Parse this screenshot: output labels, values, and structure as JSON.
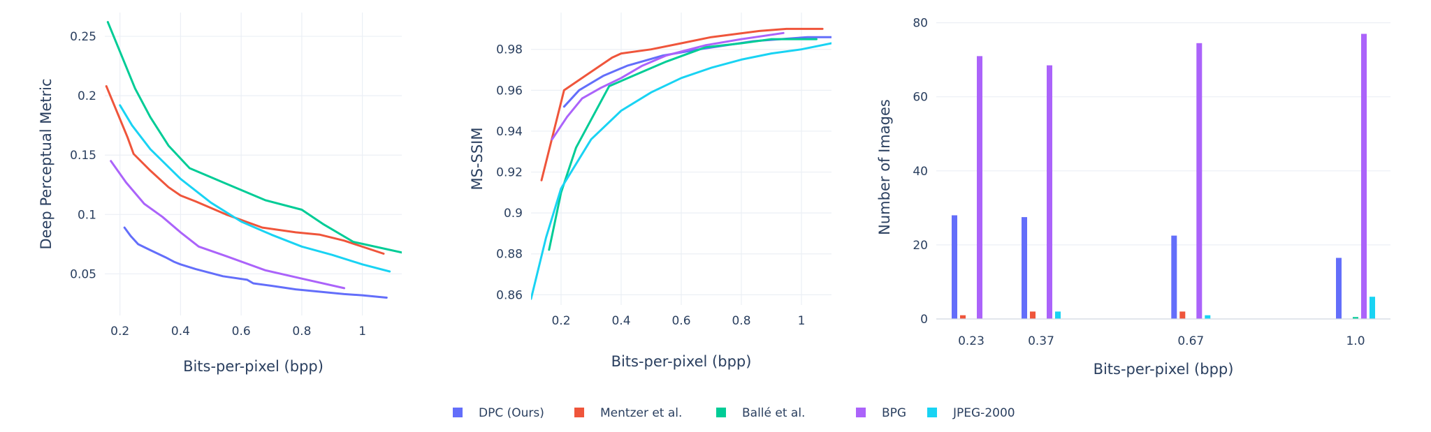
{
  "colors": {
    "DPC (Ours)": "#636efa",
    "Mentzer et al.": "#ef553b",
    "Ballé et al.": "#00cc96",
    "BPG": "#ab63fa",
    "JPEG-2000": "#19d3f3"
  },
  "legend": [
    "DPC (Ours)",
    "Mentzer et al.",
    "Ballé et al.",
    "BPG",
    "JPEG-2000"
  ],
  "chart_data": [
    {
      "type": "line",
      "title": "",
      "xlabel": "Bits-per-pixel (bpp)",
      "ylabel": "Deep Perceptual Metric",
      "xlim": [
        0.15,
        1.13
      ],
      "ylim": [
        0.015,
        0.27
      ],
      "xticks": [
        0.2,
        0.4,
        0.6,
        0.8,
        1
      ],
      "xtick_labels": [
        "0.2",
        "0.4",
        "0.6",
        "0.8",
        "1"
      ],
      "yticks": [
        0.05,
        0.1,
        0.15,
        0.2,
        0.25
      ],
      "ytick_labels": [
        "0.05",
        "0.1",
        "0.15",
        "0.2",
        "0.25"
      ],
      "grid": true,
      "series": [
        {
          "name": "DPC (Ours)",
          "x": [
            0.215,
            0.235,
            0.26,
            0.3,
            0.35,
            0.38,
            0.4,
            0.45,
            0.54,
            0.62,
            0.64,
            0.7,
            0.78,
            0.86,
            0.94,
            1.0,
            1.08
          ],
          "y": [
            0.089,
            0.082,
            0.075,
            0.07,
            0.064,
            0.06,
            0.058,
            0.054,
            0.048,
            0.045,
            0.042,
            0.04,
            0.037,
            0.035,
            0.033,
            0.032,
            0.03
          ]
        },
        {
          "name": "Mentzer et al.",
          "x": [
            0.155,
            0.225,
            0.245,
            0.3,
            0.36,
            0.4,
            0.45,
            0.55,
            0.67,
            0.78,
            0.86,
            0.94,
            1.07
          ],
          "y": [
            0.208,
            0.165,
            0.151,
            0.137,
            0.123,
            0.116,
            0.111,
            0.1,
            0.089,
            0.085,
            0.083,
            0.078,
            0.067
          ]
        },
        {
          "name": "Ballé et al.",
          "x": [
            0.16,
            0.25,
            0.3,
            0.36,
            0.43,
            0.55,
            0.68,
            0.8,
            0.87,
            0.97,
            1.13
          ],
          "y": [
            0.262,
            0.206,
            0.182,
            0.158,
            0.139,
            0.126,
            0.112,
            0.104,
            0.092,
            0.077,
            0.068
          ]
        },
        {
          "name": "BPG",
          "x": [
            0.17,
            0.22,
            0.28,
            0.34,
            0.4,
            0.46,
            0.55,
            0.68,
            0.8,
            0.94
          ],
          "y": [
            0.145,
            0.127,
            0.109,
            0.098,
            0.085,
            0.073,
            0.065,
            0.053,
            0.046,
            0.038
          ]
        },
        {
          "name": "JPEG-2000",
          "x": [
            0.2,
            0.24,
            0.3,
            0.4,
            0.5,
            0.6,
            0.7,
            0.8,
            0.9,
            1.0,
            1.09
          ],
          "y": [
            0.192,
            0.175,
            0.155,
            0.13,
            0.11,
            0.094,
            0.083,
            0.073,
            0.066,
            0.058,
            0.052
          ]
        }
      ]
    },
    {
      "type": "line",
      "title": "",
      "xlabel": "Bits-per-pixel (bpp)",
      "ylabel": "MS-SSIM",
      "xlim": [
        0.1,
        1.1
      ],
      "ylim": [
        0.855,
        0.998
      ],
      "xticks": [
        0.2,
        0.4,
        0.6,
        0.8,
        1
      ],
      "xtick_labels": [
        "0.2",
        "0.4",
        "0.6",
        "0.8",
        "1"
      ],
      "yticks": [
        0.86,
        0.88,
        0.9,
        0.92,
        0.94,
        0.96,
        0.98
      ],
      "ytick_labels": [
        "0.86",
        "0.88",
        "0.9",
        "0.92",
        "0.94",
        "0.96",
        "0.98"
      ],
      "grid": true,
      "series": [
        {
          "name": "DPC (Ours)",
          "x": [
            0.21,
            0.26,
            0.34,
            0.42,
            0.54,
            0.66,
            0.84,
            1.02,
            1.1
          ],
          "y": [
            0.952,
            0.96,
            0.967,
            0.972,
            0.977,
            0.98,
            0.984,
            0.986,
            0.986
          ]
        },
        {
          "name": "Mentzer et al.",
          "x": [
            0.135,
            0.21,
            0.28,
            0.37,
            0.4,
            0.5,
            0.6,
            0.7,
            0.86,
            0.95,
            1.07
          ],
          "y": [
            0.916,
            0.96,
            0.967,
            0.976,
            0.978,
            0.98,
            0.983,
            0.986,
            0.989,
            0.99,
            0.99
          ]
        },
        {
          "name": "Ballé et al.",
          "x": [
            0.16,
            0.2,
            0.25,
            0.36,
            0.47,
            0.55,
            0.68,
            0.8,
            0.9,
            1.05
          ],
          "y": [
            0.882,
            0.91,
            0.932,
            0.962,
            0.969,
            0.974,
            0.981,
            0.983,
            0.985,
            0.985
          ]
        },
        {
          "name": "BPG",
          "x": [
            0.17,
            0.22,
            0.27,
            0.33,
            0.4,
            0.47,
            0.55,
            0.68,
            0.8,
            0.94
          ],
          "y": [
            0.936,
            0.947,
            0.956,
            0.961,
            0.966,
            0.972,
            0.977,
            0.982,
            0.985,
            0.988
          ]
        },
        {
          "name": "JPEG-2000",
          "x": [
            0.1,
            0.15,
            0.2,
            0.3,
            0.4,
            0.5,
            0.6,
            0.7,
            0.8,
            0.9,
            1.0,
            1.1
          ],
          "y": [
            0.858,
            0.888,
            0.912,
            0.936,
            0.95,
            0.959,
            0.966,
            0.971,
            0.975,
            0.978,
            0.98,
            0.983
          ]
        }
      ]
    },
    {
      "type": "bar",
      "title": "",
      "xlabel": "Bits-per-pixel (bpp)",
      "ylabel": "Number of Images",
      "categories": [
        "0.23",
        "0.37",
        "0.67",
        "1.0"
      ],
      "category_x": [
        0.23,
        0.37,
        0.67,
        1.0
      ],
      "xlim": [
        0.16,
        1.07
      ],
      "ylim": [
        0,
        82
      ],
      "yticks": [
        0,
        20,
        40,
        60,
        80
      ],
      "ytick_labels": [
        "0",
        "20",
        "40",
        "60",
        "80"
      ],
      "grid": true,
      "series": [
        {
          "name": "DPC (Ours)",
          "values": [
            28,
            27.5,
            22.5,
            16.5
          ]
        },
        {
          "name": "Mentzer et al.",
          "values": [
            1,
            2,
            2,
            0
          ]
        },
        {
          "name": "Ballé et al.",
          "values": [
            0,
            0,
            0,
            0.5
          ]
        },
        {
          "name": "BPG",
          "values": [
            71,
            68.5,
            74.5,
            77
          ]
        },
        {
          "name": "JPEG-2000",
          "values": [
            0,
            2,
            1,
            6
          ]
        }
      ]
    }
  ]
}
